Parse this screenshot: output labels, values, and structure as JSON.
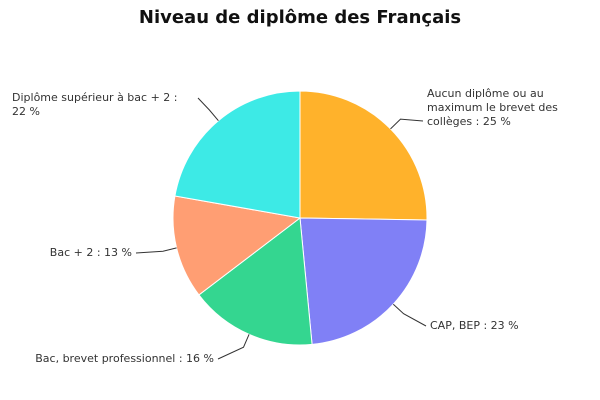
{
  "chart_data": {
    "type": "pie",
    "title": "Niveau de diplôme des Français",
    "slices": [
      {
        "label": "Aucun diplôme ou au maximum le brevet des collèges : 25 %",
        "name": "Aucun diplôme ou au maximum le brevet des collèges",
        "value": 25,
        "color": "#FFB22B"
      },
      {
        "label": "CAP, BEP : 23 %",
        "name": "CAP, BEP",
        "value": 23,
        "color": "#8080F6"
      },
      {
        "label": "Bac, brevet professionnel : 16 %",
        "name": "Bac, brevet professionnel",
        "value": 16,
        "color": "#34D690"
      },
      {
        "label": "Bac + 2 : 13 %",
        "name": "Bac + 2",
        "value": 13,
        "color": "#FF9E73"
      },
      {
        "label": "Diplôme supérieur à bac + 2 : 22 %",
        "name": "Diplôme supérieur à bac + 2",
        "value": 22,
        "color": "#3DEAE6"
      }
    ]
  }
}
